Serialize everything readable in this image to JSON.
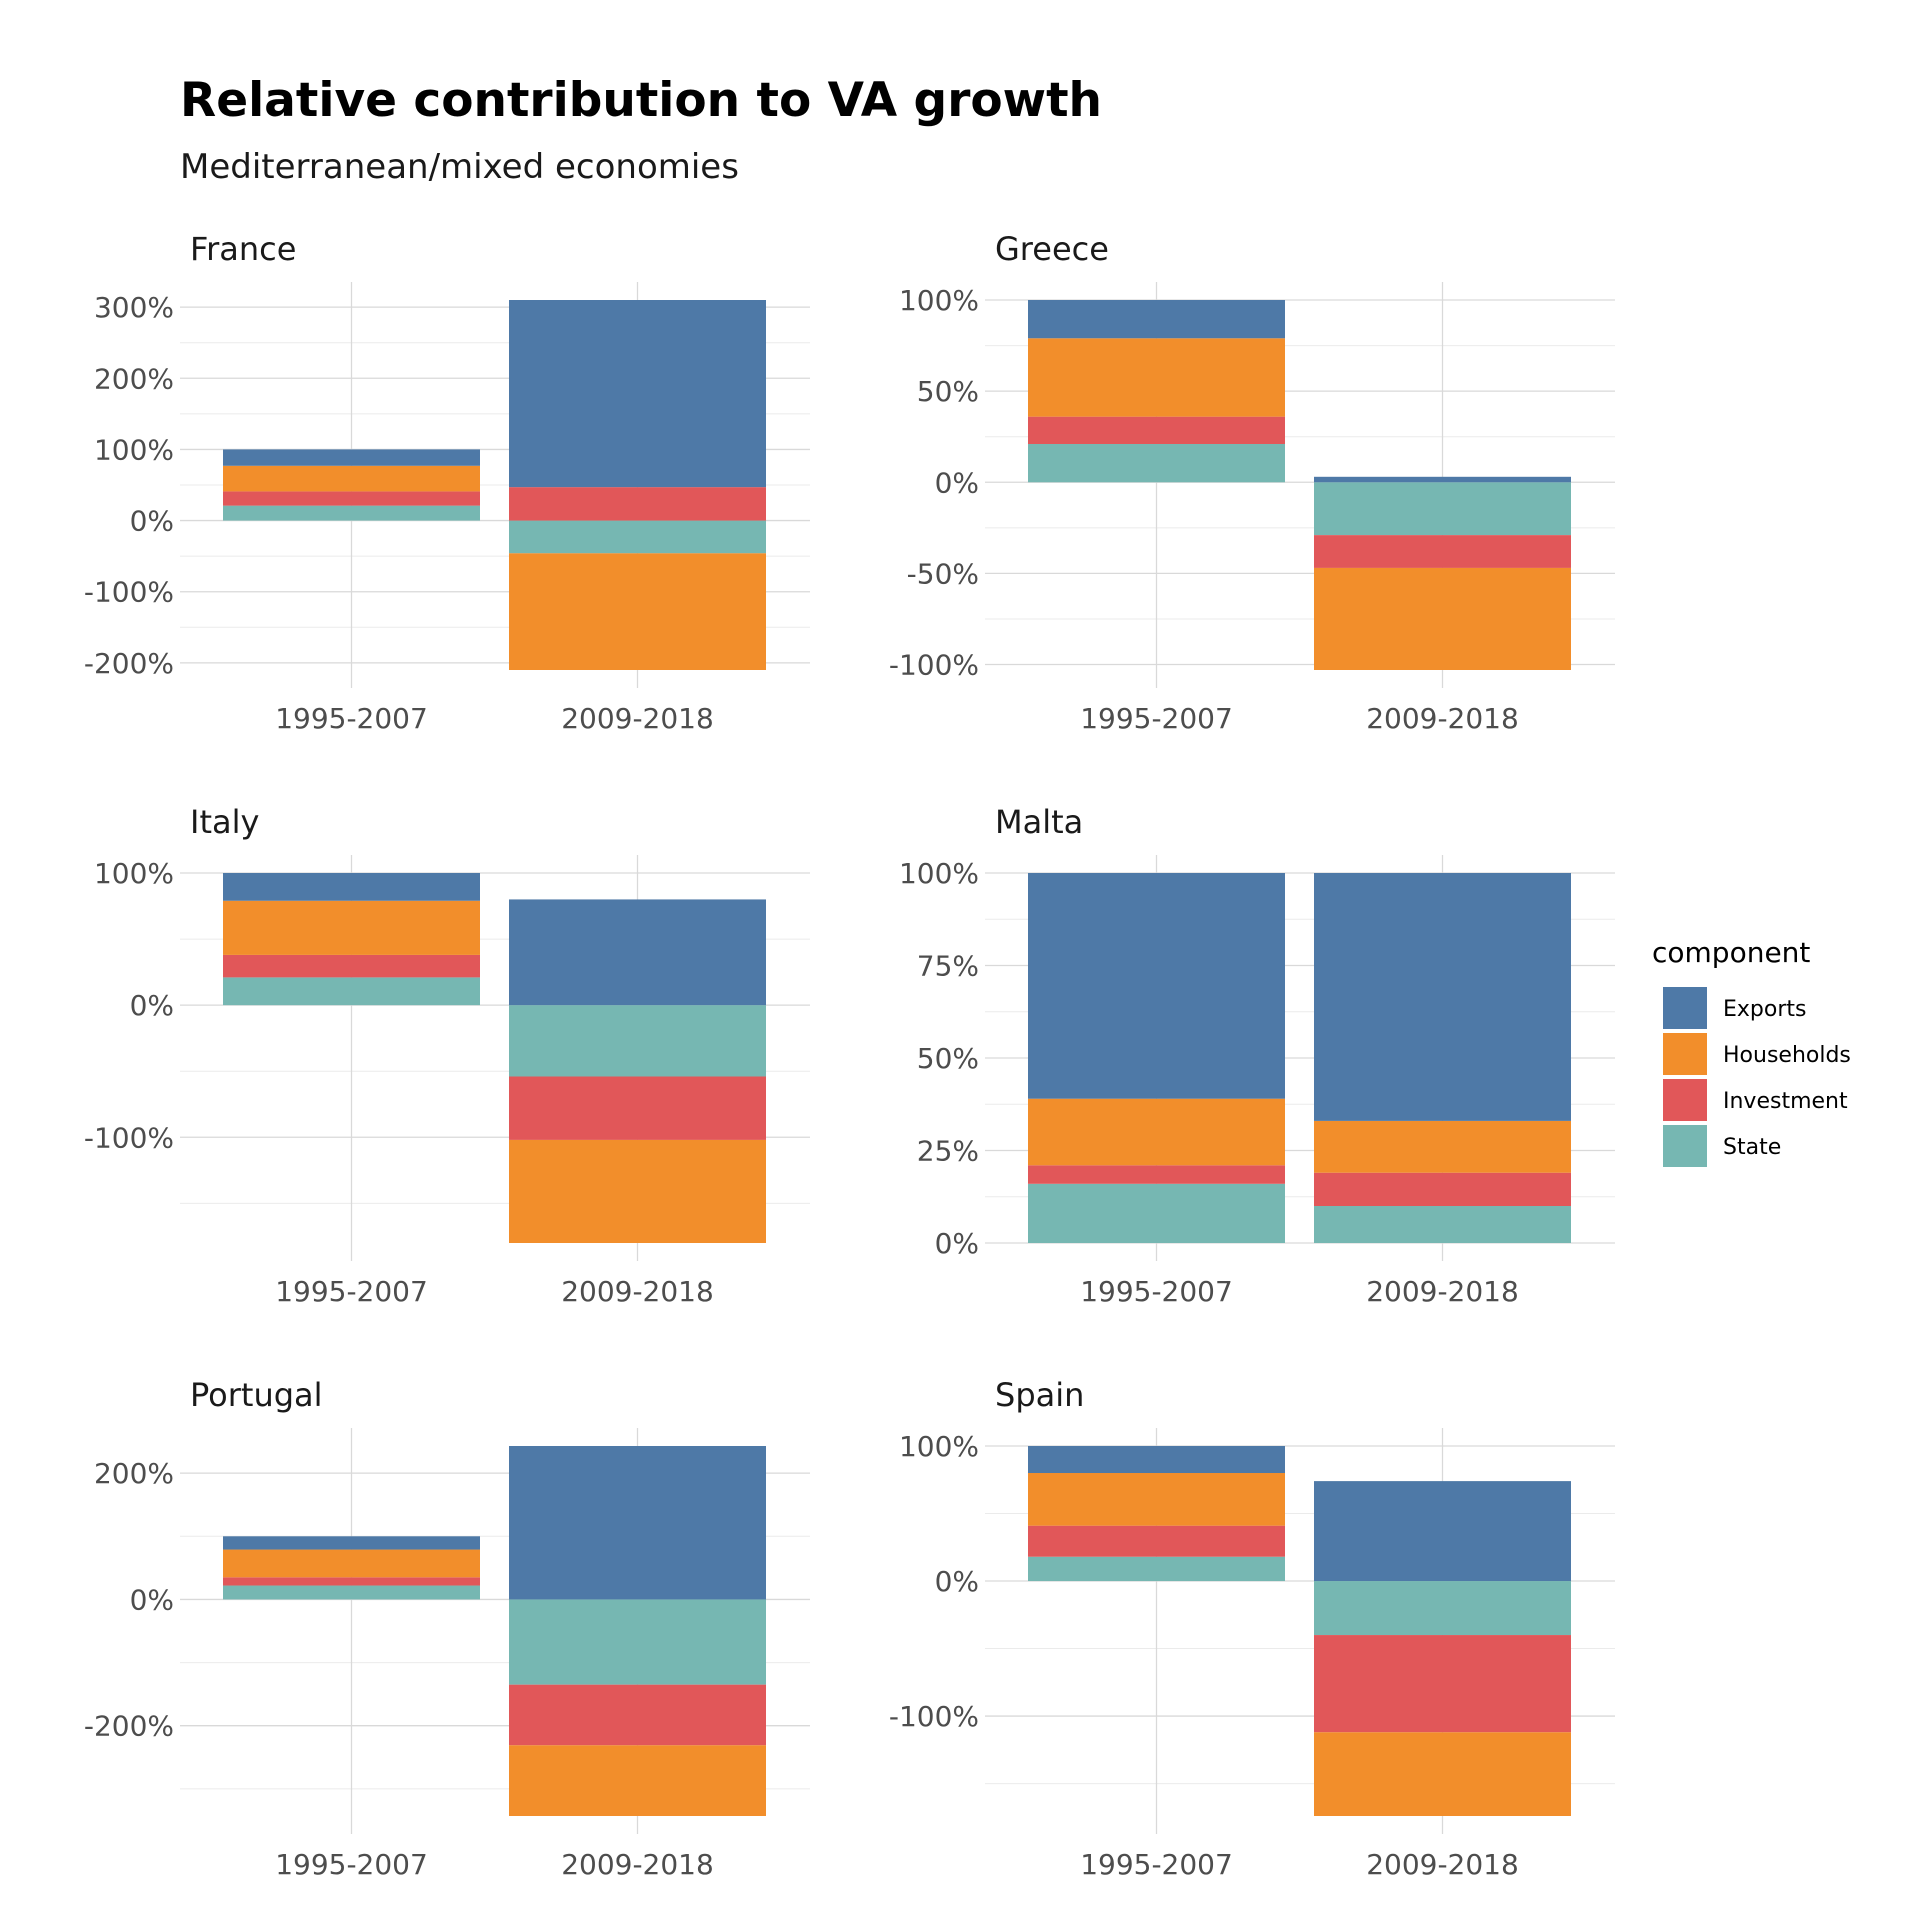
{
  "title": "Relative contribution to VA growth",
  "subtitle": "Mediterranean/mixed economies",
  "legend": {
    "title": "component",
    "items": [
      {
        "label": "Exports",
        "color": "#4E79A7"
      },
      {
        "label": "Households",
        "color": "#F28E2B"
      },
      {
        "label": "Investment",
        "color": "#E15759"
      },
      {
        "label": "State",
        "color": "#76B7B2"
      }
    ]
  },
  "chart_data": [
    {
      "type": "bar",
      "stacked": true,
      "facet": "France",
      "categories": [
        "1995-2007",
        "2009-2018"
      ],
      "ylim": [
        -210,
        310
      ],
      "yticks": [
        300,
        200,
        100,
        0,
        -100,
        -200
      ],
      "ytick_labels": [
        "300%",
        "200%",
        "100%",
        "0%",
        "-100%",
        "-200%"
      ],
      "series": [
        {
          "name": "State",
          "values": [
            21,
            -46
          ]
        },
        {
          "name": "Investment",
          "values": [
            20,
            47
          ]
        },
        {
          "name": "Households",
          "values": [
            36,
            -164
          ]
        },
        {
          "name": "Exports",
          "values": [
            23,
            263
          ]
        }
      ]
    },
    {
      "type": "bar",
      "stacked": true,
      "facet": "Greece",
      "categories": [
        "1995-2007",
        "2009-2018"
      ],
      "ylim": [
        -103,
        100
      ],
      "yticks": [
        100,
        50,
        0,
        -50,
        -100
      ],
      "ytick_labels": [
        "100%",
        "50%",
        "0%",
        "-50%",
        "-100%"
      ],
      "series": [
        {
          "name": "State",
          "values": [
            21,
            -29
          ]
        },
        {
          "name": "Investment",
          "values": [
            15,
            -18
          ]
        },
        {
          "name": "Households",
          "values": [
            43,
            -56
          ]
        },
        {
          "name": "Exports",
          "values": [
            21,
            3
          ]
        }
      ]
    },
    {
      "type": "bar",
      "stacked": true,
      "facet": "Italy",
      "categories": [
        "1995-2007",
        "2009-2018"
      ],
      "ylim": [
        -180,
        100
      ],
      "yticks": [
        100,
        0,
        -100
      ],
      "ytick_labels": [
        "100%",
        "0%",
        "-100%"
      ],
      "series": [
        {
          "name": "State",
          "values": [
            21,
            -54
          ]
        },
        {
          "name": "Investment",
          "values": [
            17,
            -48
          ]
        },
        {
          "name": "Households",
          "values": [
            41,
            -78
          ]
        },
        {
          "name": "Exports",
          "values": [
            21,
            80
          ]
        }
      ]
    },
    {
      "type": "bar",
      "stacked": true,
      "facet": "Malta",
      "categories": [
        "1995-2007",
        "2009-2018"
      ],
      "ylim": [
        0,
        100
      ],
      "yticks": [
        100,
        75,
        50,
        25,
        0
      ],
      "ytick_labels": [
        "100%",
        "75%",
        "50%",
        "25%",
        "0%"
      ],
      "series": [
        {
          "name": "State",
          "values": [
            16,
            10
          ]
        },
        {
          "name": "Investment",
          "values": [
            5,
            9
          ]
        },
        {
          "name": "Households",
          "values": [
            18,
            14
          ]
        },
        {
          "name": "Exports",
          "values": [
            61,
            67
          ]
        }
      ]
    },
    {
      "type": "bar",
      "stacked": true,
      "facet": "Portugal",
      "categories": [
        "1995-2007",
        "2009-2018"
      ],
      "ylim": [
        -343,
        243
      ],
      "yticks": [
        200,
        0,
        -200
      ],
      "ytick_labels": [
        "200%",
        "0%",
        "-200%"
      ],
      "series": [
        {
          "name": "State",
          "values": [
            22,
            -135
          ]
        },
        {
          "name": "Investment",
          "values": [
            13,
            -96
          ]
        },
        {
          "name": "Households",
          "values": [
            44,
            -112
          ]
        },
        {
          "name": "Exports",
          "values": [
            21,
            243
          ]
        }
      ]
    },
    {
      "type": "bar",
      "stacked": true,
      "facet": "Spain",
      "categories": [
        "1995-2007",
        "2009-2018"
      ],
      "ylim": [
        -174,
        100
      ],
      "yticks": [
        100,
        0,
        -100
      ],
      "ytick_labels": [
        "100%",
        "0%",
        "-100%"
      ],
      "series": [
        {
          "name": "State",
          "values": [
            18,
            -40
          ]
        },
        {
          "name": "Investment",
          "values": [
            23,
            -72
          ]
        },
        {
          "name": "Households",
          "values": [
            39,
            -62
          ]
        },
        {
          "name": "Exports",
          "values": [
            20,
            74
          ]
        }
      ]
    }
  ]
}
